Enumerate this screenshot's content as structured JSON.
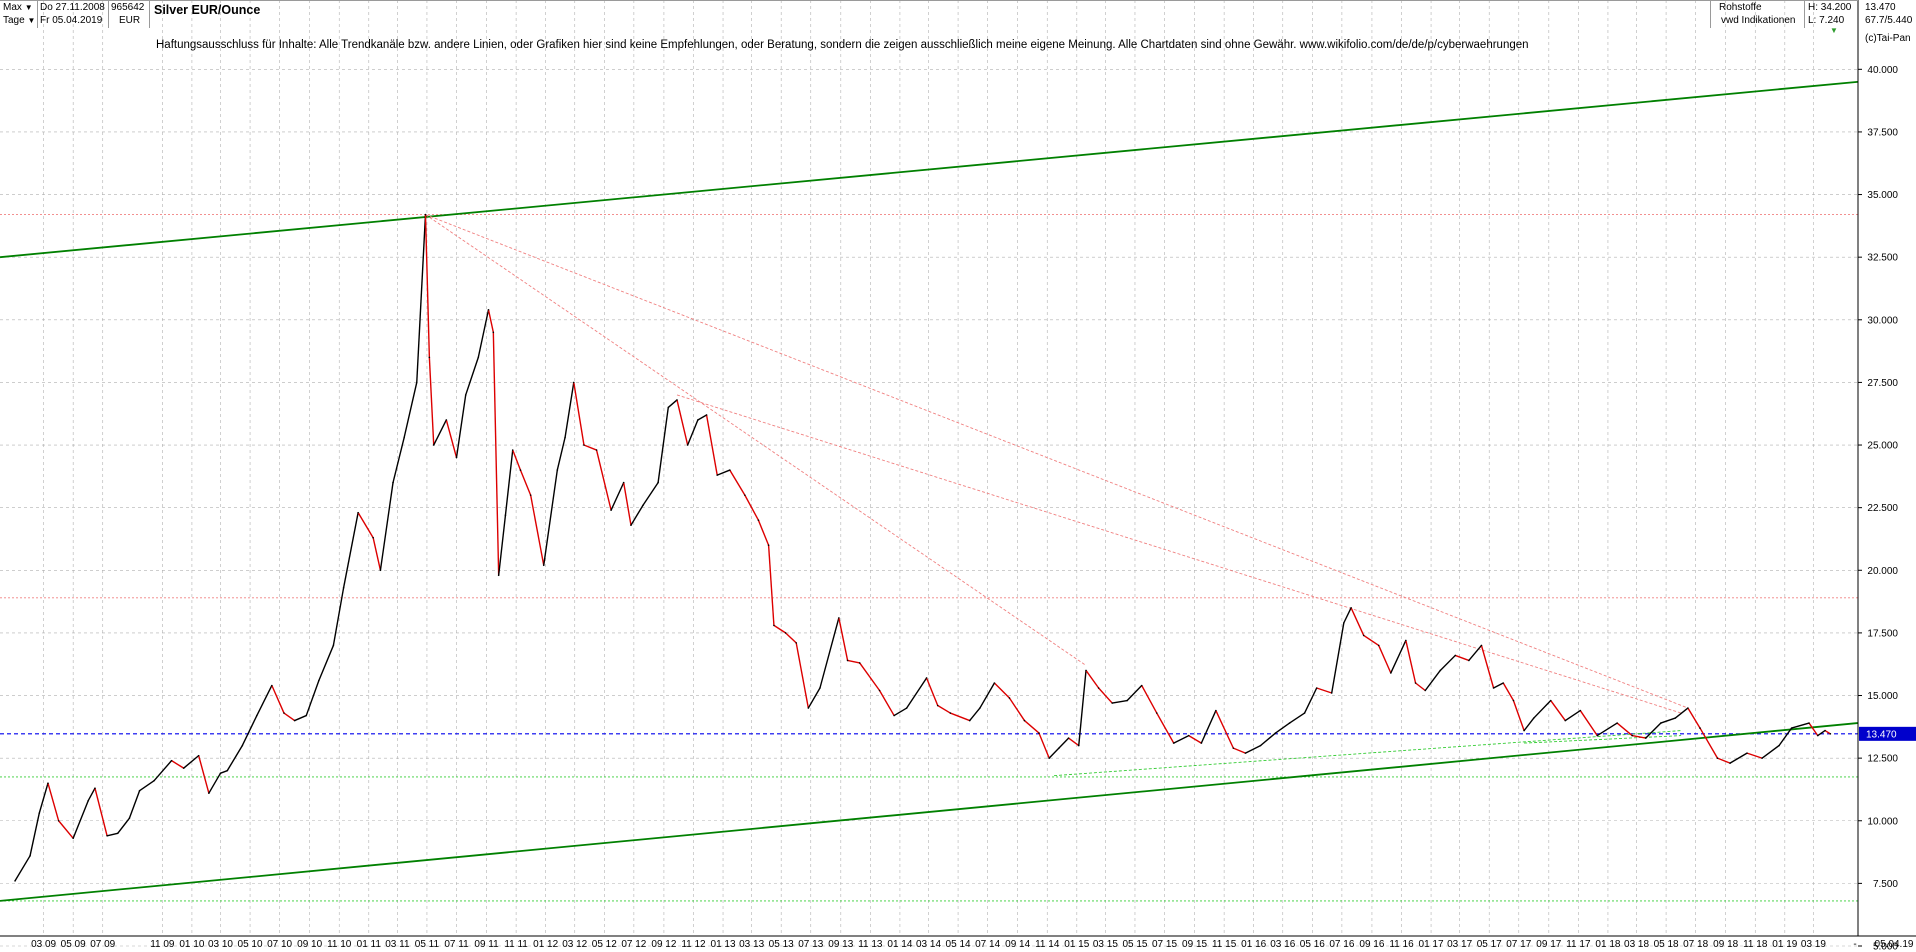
{
  "header": {
    "range_selector": "Max",
    "interval_selector": "Tage",
    "date_from": "Do 27.11.2008",
    "date_to": "Fr 05.04.2019",
    "symbol_id": "965642",
    "currency": "EUR",
    "title": "Silver EUR/Ounce",
    "category": "Rohstoffe",
    "source": "vwd Indikationen",
    "high": "H: 34.200",
    "low": "L: 7.240",
    "last": "13.470",
    "stat": "67.7/5.440",
    "copyright": "(c)Tai-Pan"
  },
  "disclaimer": "Haftungsausschluss für Inhalte: Alle Trendkanäle bzw. andere Linien, oder Grafiken hier sind keine Empfehlungen, oder Beratung, sondern die zeigen ausschließlich meine eigene Meinung. Alle Chartdaten sind ohne Gewähr.  www.wikifolio.com/de/de/p/cyberwaehrungen",
  "colors": {
    "price_line": "#000000",
    "price_down": "#dd0000",
    "trendline": "#008000",
    "support_dotted": "#33cc33",
    "resistance_dotted": "#f08080",
    "last_price_line": "#0000ee",
    "last_price_box": "#0000cc",
    "grid": "#b0b0b0"
  },
  "icons": {
    "dropdown": "triangle-down-icon",
    "marker": "triangle-down-green-icon"
  },
  "chart_data": {
    "type": "line",
    "title": "Silver EUR/Ounce",
    "xlabel": "",
    "ylabel": "",
    "ylim": [
      5.0,
      41.25
    ],
    "yticks": [
      "5.000",
      "7.500",
      "10.000",
      "12.500",
      "15.000",
      "17.500",
      "20.000",
      "22.500",
      "25.000",
      "27.500",
      "30.000",
      "32.500",
      "35.000",
      "37.500",
      "40.000"
    ],
    "last_value": "13.470",
    "xlim": [
      "2009-01",
      "2019-06"
    ],
    "xticks": [
      "03 09",
      "05 09",
      "07 09",
      "11 09",
      "01 10",
      "03 10",
      "05 10",
      "07 10",
      "09 10",
      "11 10",
      "01 11",
      "03 11",
      "05 11",
      "07 11",
      "09 11",
      "11 11",
      "01 12",
      "03 12",
      "05 12",
      "07 12",
      "09 12",
      "11 12",
      "01 13",
      "03 13",
      "05 13",
      "07 13",
      "09 13",
      "11 13",
      "01 14",
      "03 14",
      "05 14",
      "07 14",
      "09 14",
      "11 14",
      "01 15",
      "03 15",
      "05 15",
      "07 15",
      "09 15",
      "11 15",
      "01 16",
      "03 16",
      "05 16",
      "07 16",
      "09 16",
      "11 16",
      "01 17",
      "03 17",
      "05 17",
      "07 17",
      "09 17",
      "11 17",
      "01 18",
      "03 18",
      "05 18",
      "07 18",
      "09 18",
      "11 18",
      "01 19",
      "03 19",
      "-",
      "05.04.19"
    ],
    "series": [
      {
        "points": [
          [
            "2009-01-01",
            7.6
          ],
          [
            "2009-02-01",
            8.6
          ],
          [
            "2009-02-20",
            10.3
          ],
          [
            "2009-03-10",
            11.5
          ],
          [
            "2009-04-01",
            10.0
          ],
          [
            "2009-05-01",
            9.3
          ],
          [
            "2009-06-01",
            10.8
          ],
          [
            "2009-06-15",
            11.3
          ],
          [
            "2009-07-10",
            9.4
          ],
          [
            "2009-08-01",
            9.5
          ],
          [
            "2009-08-25",
            10.1
          ],
          [
            "2009-09-15",
            11.2
          ],
          [
            "2009-10-15",
            11.6
          ],
          [
            "2009-11-20",
            12.4
          ],
          [
            "2009-12-15",
            12.1
          ],
          [
            "2010-01-15",
            12.6
          ],
          [
            "2010-02-05",
            11.1
          ],
          [
            "2010-03-01",
            11.9
          ],
          [
            "2010-03-15",
            12.0
          ],
          [
            "2010-04-15",
            13.0
          ],
          [
            "2010-05-15",
            14.2
          ],
          [
            "2010-06-15",
            15.4
          ],
          [
            "2010-07-10",
            14.3
          ],
          [
            "2010-08-01",
            14.0
          ],
          [
            "2010-08-25",
            14.2
          ],
          [
            "2010-09-20",
            15.6
          ],
          [
            "2010-10-20",
            17.0
          ],
          [
            "2010-11-10",
            19.3
          ],
          [
            "2010-12-10",
            22.3
          ],
          [
            "2011-01-10",
            21.3
          ],
          [
            "2011-01-25",
            20.0
          ],
          [
            "2011-02-20",
            23.5
          ],
          [
            "2011-03-15",
            25.3
          ],
          [
            "2011-04-10",
            27.5
          ],
          [
            "2011-04-28",
            34.2
          ],
          [
            "2011-05-06",
            28.5
          ],
          [
            "2011-05-15",
            25.0
          ],
          [
            "2011-06-10",
            26.0
          ],
          [
            "2011-07-01",
            24.5
          ],
          [
            "2011-07-20",
            27.0
          ],
          [
            "2011-08-15",
            28.5
          ],
          [
            "2011-09-05",
            30.4
          ],
          [
            "2011-09-15",
            29.5
          ],
          [
            "2011-09-26",
            19.8
          ],
          [
            "2011-10-10",
            22.2
          ],
          [
            "2011-10-25",
            24.8
          ],
          [
            "2011-11-10",
            24.0
          ],
          [
            "2011-12-01",
            23.0
          ],
          [
            "2011-12-28",
            20.2
          ],
          [
            "2012-01-25",
            24.0
          ],
          [
            "2012-02-10",
            25.3
          ],
          [
            "2012-02-28",
            27.5
          ],
          [
            "2012-03-20",
            25.0
          ],
          [
            "2012-04-15",
            24.8
          ],
          [
            "2012-05-15",
            22.4
          ],
          [
            "2012-06-10",
            23.5
          ],
          [
            "2012-06-25",
            21.8
          ],
          [
            "2012-07-20",
            22.6
          ],
          [
            "2012-08-20",
            23.5
          ],
          [
            "2012-09-10",
            26.5
          ],
          [
            "2012-09-28",
            26.8
          ],
          [
            "2012-10-20",
            25.0
          ],
          [
            "2012-11-10",
            26.0
          ],
          [
            "2012-11-28",
            26.2
          ],
          [
            "2012-12-20",
            23.8
          ],
          [
            "2013-01-15",
            24.0
          ],
          [
            "2013-02-15",
            23.0
          ],
          [
            "2013-03-15",
            22.0
          ],
          [
            "2013-04-05",
            21.0
          ],
          [
            "2013-04-16",
            17.8
          ],
          [
            "2013-05-10",
            17.5
          ],
          [
            "2013-06-01",
            17.1
          ],
          [
            "2013-06-26",
            14.5
          ],
          [
            "2013-07-20",
            15.3
          ],
          [
            "2013-08-28",
            18.1
          ],
          [
            "2013-09-15",
            16.4
          ],
          [
            "2013-10-10",
            16.3
          ],
          [
            "2013-11-20",
            15.2
          ],
          [
            "2013-12-20",
            14.2
          ],
          [
            "2014-01-15",
            14.5
          ],
          [
            "2014-02-25",
            15.7
          ],
          [
            "2014-03-20",
            14.6
          ],
          [
            "2014-04-15",
            14.3
          ],
          [
            "2014-05-25",
            14.0
          ],
          [
            "2014-06-15",
            14.5
          ],
          [
            "2014-07-15",
            15.5
          ],
          [
            "2014-08-15",
            14.9
          ],
          [
            "2014-09-15",
            14.0
          ],
          [
            "2014-10-15",
            13.5
          ],
          [
            "2014-11-05",
            12.5
          ],
          [
            "2014-11-25",
            12.9
          ],
          [
            "2014-12-15",
            13.3
          ],
          [
            "2015-01-05",
            13.0
          ],
          [
            "2015-01-20",
            16.0
          ],
          [
            "2015-02-15",
            15.3
          ],
          [
            "2015-03-15",
            14.7
          ],
          [
            "2015-04-15",
            14.8
          ],
          [
            "2015-05-15",
            15.4
          ],
          [
            "2015-06-15",
            14.3
          ],
          [
            "2015-07-20",
            13.1
          ],
          [
            "2015-08-20",
            13.4
          ],
          [
            "2015-09-15",
            13.1
          ],
          [
            "2015-10-15",
            14.4
          ],
          [
            "2015-11-20",
            12.9
          ],
          [
            "2015-12-15",
            12.7
          ],
          [
            "2016-01-15",
            13.0
          ],
          [
            "2016-02-15",
            13.5
          ],
          [
            "2016-03-15",
            13.9
          ],
          [
            "2016-04-15",
            14.3
          ],
          [
            "2016-05-10",
            15.3
          ],
          [
            "2016-06-10",
            15.1
          ],
          [
            "2016-07-05",
            17.9
          ],
          [
            "2016-07-20",
            18.5
          ],
          [
            "2016-08-15",
            17.4
          ],
          [
            "2016-09-15",
            17.0
          ],
          [
            "2016-10-10",
            15.9
          ],
          [
            "2016-11-10",
            17.2
          ],
          [
            "2016-11-30",
            15.5
          ],
          [
            "2016-12-20",
            15.2
          ],
          [
            "2017-01-20",
            16.0
          ],
          [
            "2017-02-20",
            16.6
          ],
          [
            "2017-03-20",
            16.4
          ],
          [
            "2017-04-15",
            17.0
          ],
          [
            "2017-05-10",
            15.3
          ],
          [
            "2017-05-30",
            15.5
          ],
          [
            "2017-06-20",
            14.8
          ],
          [
            "2017-07-12",
            13.6
          ],
          [
            "2017-08-01",
            14.1
          ],
          [
            "2017-09-05",
            14.8
          ],
          [
            "2017-10-05",
            14.0
          ],
          [
            "2017-11-05",
            14.4
          ],
          [
            "2017-12-10",
            13.4
          ],
          [
            "2018-01-20",
            13.9
          ],
          [
            "2018-02-20",
            13.4
          ],
          [
            "2018-03-20",
            13.3
          ],
          [
            "2018-04-20",
            13.9
          ],
          [
            "2018-05-20",
            14.1
          ],
          [
            "2018-06-15",
            14.5
          ],
          [
            "2018-07-10",
            13.7
          ],
          [
            "2018-08-15",
            12.5
          ],
          [
            "2018-09-10",
            12.3
          ],
          [
            "2018-10-15",
            12.7
          ],
          [
            "2018-11-15",
            12.5
          ],
          [
            "2018-12-20",
            13.0
          ],
          [
            "2019-01-15",
            13.7
          ],
          [
            "2019-02-20",
            13.9
          ],
          [
            "2019-03-10",
            13.4
          ],
          [
            "2019-03-25",
            13.6
          ],
          [
            "2019-04-05",
            13.47
          ]
        ]
      }
    ],
    "trendlines": [
      {
        "style": "solid",
        "color": "green",
        "from": [
          "2008-12-01",
          32.5
        ],
        "to": [
          "2019-05-31",
          39.5
        ]
      },
      {
        "style": "solid",
        "color": "green",
        "from": [
          "2008-12-01",
          6.8
        ],
        "to": [
          "2019-05-31",
          13.9
        ]
      },
      {
        "style": "dotted",
        "color": "salmon",
        "from": [
          "2011-04-28",
          34.2
        ],
        "to": [
          "2018-06-15",
          14.5
        ]
      },
      {
        "style": "dotted",
        "color": "salmon",
        "from": [
          "2011-04-28",
          34.2
        ],
        "to": [
          "2015-01-20",
          16.2
        ]
      },
      {
        "style": "dotted",
        "color": "salmon",
        "from": [
          "2012-09-28",
          27.0
        ],
        "to": [
          "2018-06-01",
          14.3
        ]
      },
      {
        "style": "dotted",
        "color": "lightgreen",
        "from": [
          "2014-11-15",
          11.8
        ],
        "to": [
          "2018-06-01",
          13.6
        ]
      },
      {
        "style": "dotted",
        "color": "lightgreen",
        "from": [
          "2017-07-12",
          13.1
        ],
        "to": [
          "2018-06-01",
          13.4
        ]
      }
    ],
    "horizontal_levels": [
      {
        "value": 34.2,
        "style": "dotted",
        "color": "salmon"
      },
      {
        "value": 18.9,
        "style": "dotted",
        "color": "salmon"
      },
      {
        "value": 13.47,
        "style": "dashed",
        "color": "blue"
      },
      {
        "value": 11.75,
        "style": "dotted",
        "color": "lightgreen"
      },
      {
        "value": 6.8,
        "style": "dotted",
        "color": "lightgreen"
      }
    ]
  }
}
